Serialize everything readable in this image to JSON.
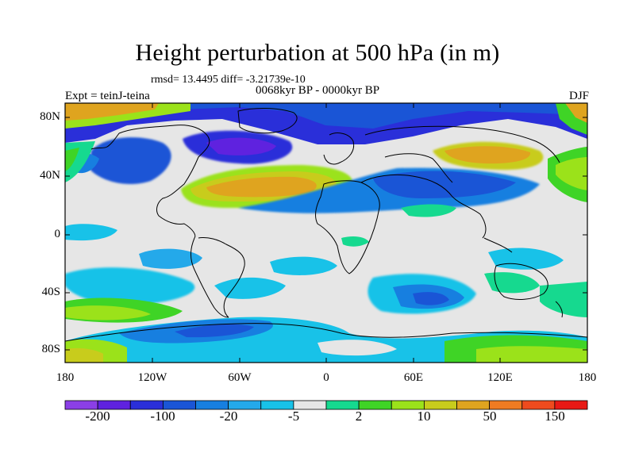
{
  "title": "Height perturbation at 500 hPa (in m)",
  "rmsd_text": "rmsd= 13.4495 diff= -3.21739e-10",
  "period": "0068kyr BP - 0000kyr BP",
  "expt": "Expt = teinJ-teina",
  "season": "DJF",
  "axes": {
    "lat_ticks": [
      "80N",
      "40N",
      "0",
      "40S",
      "80S"
    ],
    "lon_ticks": [
      "180",
      "120W",
      "60W",
      "0",
      "60E",
      "120E",
      "180"
    ]
  },
  "colorbar": {
    "colors": [
      "#8b3fe6",
      "#5f22df",
      "#2a2fd9",
      "#1a55d6",
      "#177fe0",
      "#24a9ea",
      "#18c2e8",
      "#e6e6e6",
      "#16d98f",
      "#3fd426",
      "#9be21a",
      "#c8cc1c",
      "#dfa41f",
      "#ef7b22",
      "#ee4b1e",
      "#e81915"
    ],
    "labels": [
      "-200",
      "-100",
      "-20",
      "-5",
      "2",
      "10",
      "50",
      "150"
    ]
  }
}
